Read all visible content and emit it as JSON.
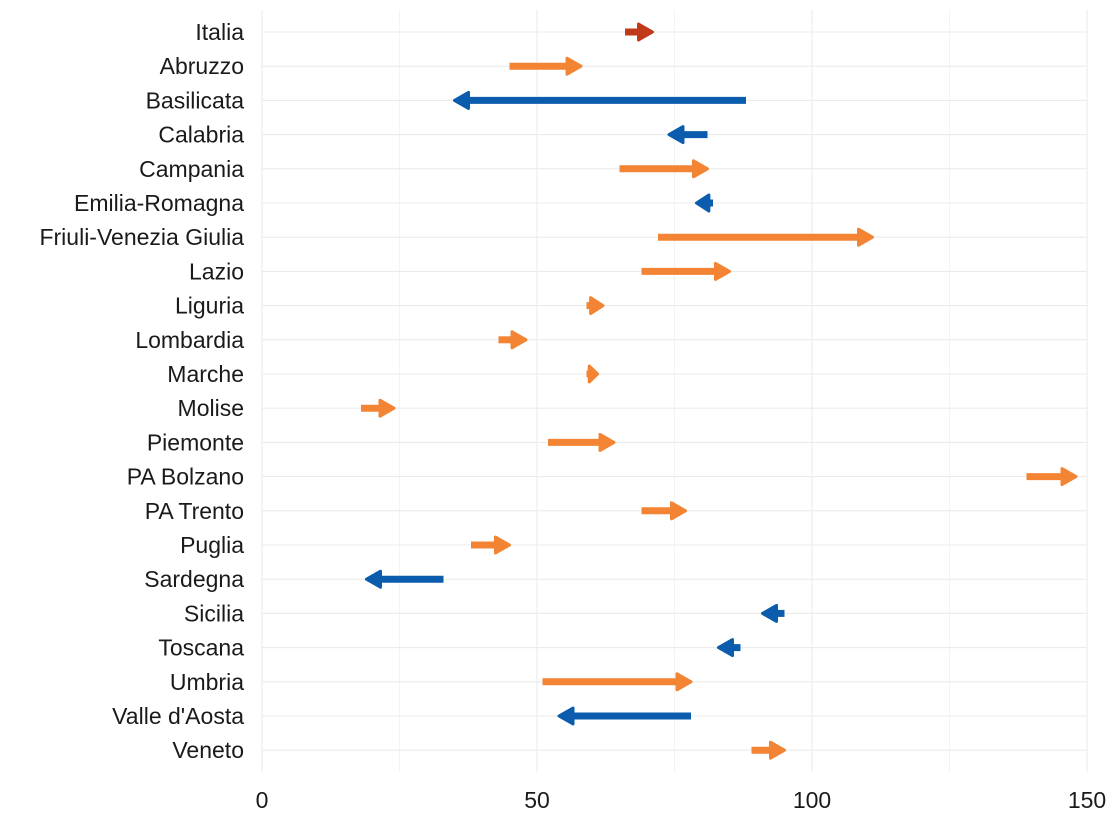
{
  "chart_data": {
    "type": "arrow",
    "title": "",
    "xlabel": "",
    "ylabel": "",
    "xlim": [
      0,
      150
    ],
    "x_ticks": [
      0,
      50,
      100,
      150
    ],
    "grid": true,
    "colors": {
      "increase": "#F28434",
      "decrease": "#0B5CAD",
      "national": "#C0391B",
      "grid": "#EBEBEB"
    },
    "series": [
      {
        "category": "Italia",
        "from": 66,
        "to": 71,
        "highlight": true
      },
      {
        "category": "Abruzzo",
        "from": 45,
        "to": 58
      },
      {
        "category": "Basilicata",
        "from": 88,
        "to": 35
      },
      {
        "category": "Calabria",
        "from": 81,
        "to": 74
      },
      {
        "category": "Campania",
        "from": 65,
        "to": 81
      },
      {
        "category": "Emilia-Romagna",
        "from": 82,
        "to": 79
      },
      {
        "category": "Friuli-Venezia Giulia",
        "from": 72,
        "to": 111
      },
      {
        "category": "Lazio",
        "from": 69,
        "to": 85
      },
      {
        "category": "Liguria",
        "from": 59,
        "to": 62
      },
      {
        "category": "Lombardia",
        "from": 43,
        "to": 48
      },
      {
        "category": "Marche",
        "from": 59,
        "to": 61
      },
      {
        "category": "Molise",
        "from": 18,
        "to": 24
      },
      {
        "category": "Piemonte",
        "from": 52,
        "to": 64
      },
      {
        "category": "PA Bolzano",
        "from": 139,
        "to": 148
      },
      {
        "category": "PA Trento",
        "from": 69,
        "to": 77
      },
      {
        "category": "Puglia",
        "from": 38,
        "to": 45
      },
      {
        "category": "Sardegna",
        "from": 33,
        "to": 19
      },
      {
        "category": "Sicilia",
        "from": 95,
        "to": 91
      },
      {
        "category": "Toscana",
        "from": 87,
        "to": 83
      },
      {
        "category": "Umbria",
        "from": 51,
        "to": 78
      },
      {
        "category": "Valle d'Aosta",
        "from": 78,
        "to": 54
      },
      {
        "category": "Veneto",
        "from": 89,
        "to": 95
      }
    ]
  }
}
